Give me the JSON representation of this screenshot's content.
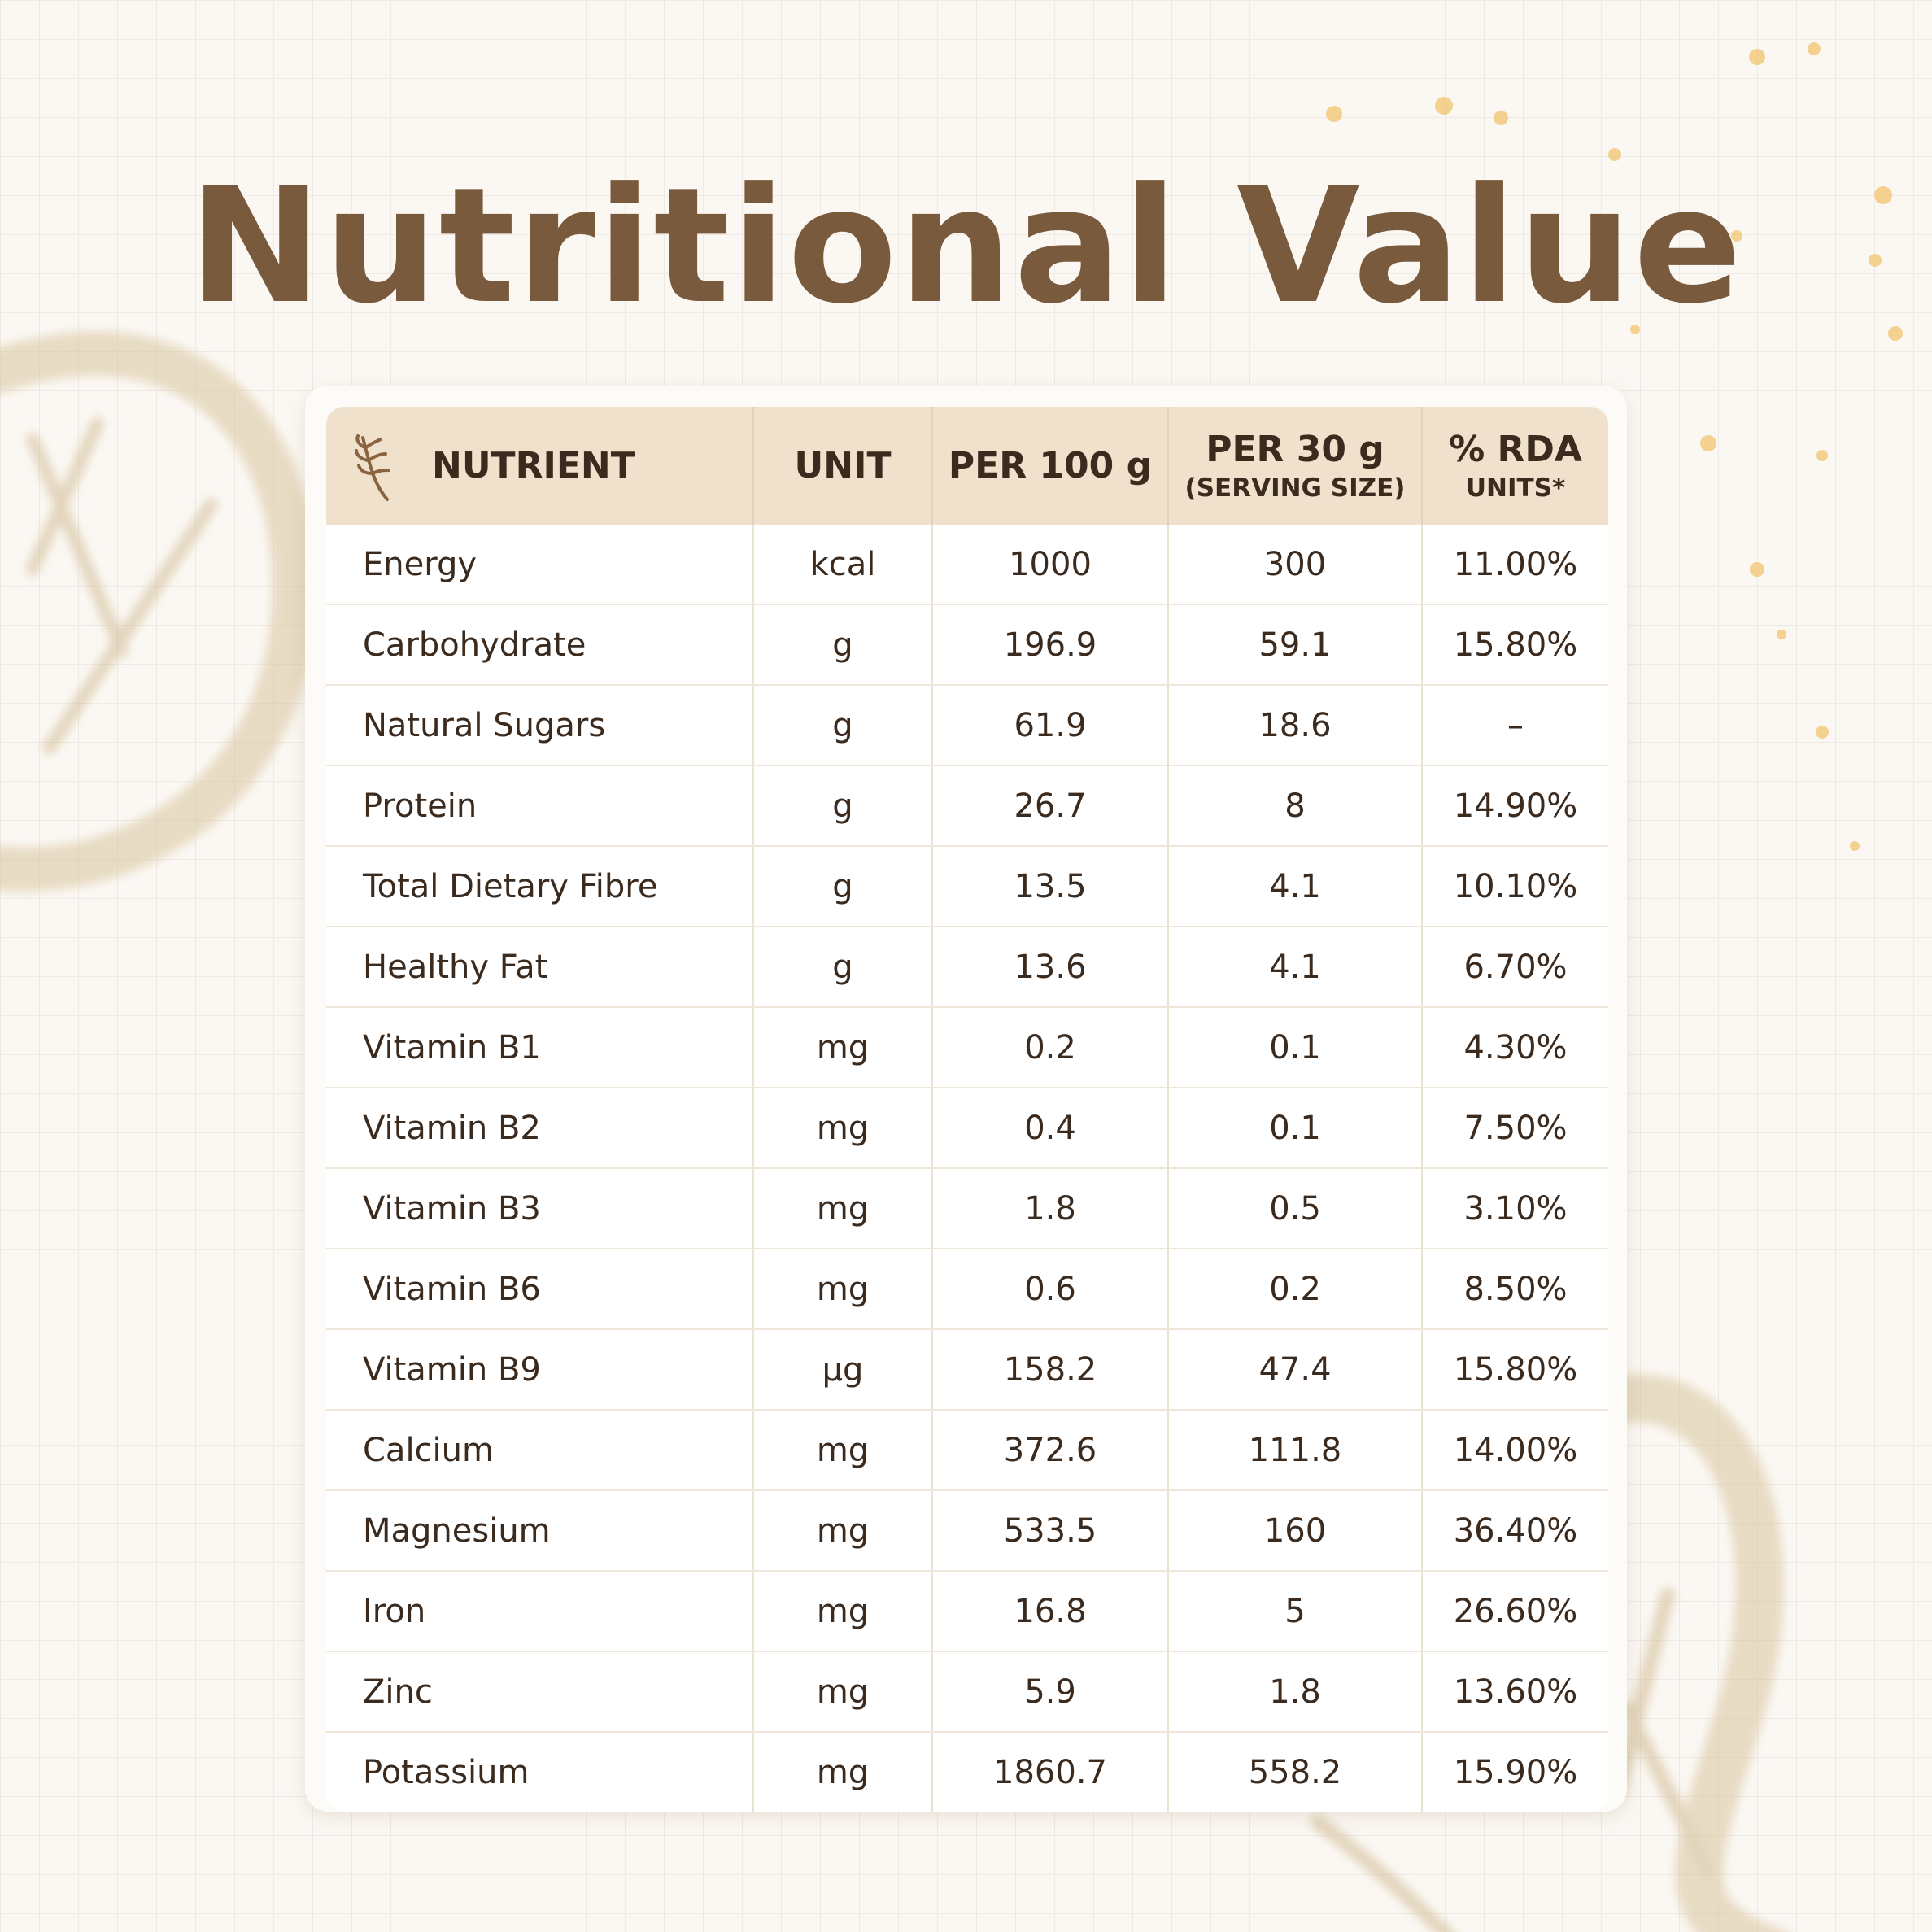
{
  "title": "Nutritional Value",
  "table": {
    "header": [
      {
        "label": "NUTRIENT"
      },
      {
        "label": "UNIT"
      },
      {
        "label": "PER 100 g"
      },
      {
        "label": "PER 30 g",
        "sublabel": "(SERVING SIZE)"
      },
      {
        "label": "% RDA",
        "sublabel": "UNITS*"
      }
    ],
    "rows": [
      [
        "Energy",
        "kcal",
        "1000",
        "300",
        "11.00%"
      ],
      [
        "Carbohydrate",
        "g",
        "196.9",
        "59.1",
        "15.80%"
      ],
      [
        "Natural Sugars",
        "g",
        "61.9",
        "18.6",
        "–"
      ],
      [
        "Protein",
        "g",
        "26.7",
        "8",
        "14.90%"
      ],
      [
        "Total Dietary Fibre",
        "g",
        "13.5",
        "4.1",
        "10.10%"
      ],
      [
        "Healthy Fat",
        "g",
        "13.6",
        "4.1",
        "6.70%"
      ],
      [
        "Vitamin B1",
        "mg",
        "0.2",
        "0.1",
        "4.30%"
      ],
      [
        "Vitamin B2",
        "mg",
        "0.4",
        "0.1",
        "7.50%"
      ],
      [
        "Vitamin B3",
        "mg",
        "1.8",
        "0.5",
        "3.10%"
      ],
      [
        "Vitamin B6",
        "mg",
        "0.6",
        "0.2",
        "8.50%"
      ],
      [
        "Vitamin B9",
        "µg",
        "158.2",
        "47.4",
        "15.80%"
      ],
      [
        "Calcium",
        "mg",
        "372.6",
        "111.8",
        "14.00%"
      ],
      [
        "Magnesium",
        "mg",
        "533.5",
        "160",
        "36.40%"
      ],
      [
        "Iron",
        "mg",
        "16.8",
        "5",
        "26.60%"
      ],
      [
        "Zinc",
        "mg",
        "5.9",
        "1.8",
        "13.60%"
      ],
      [
        "Potassium",
        "mg",
        "1860.7",
        "558.2",
        "15.90%"
      ]
    ]
  }
}
